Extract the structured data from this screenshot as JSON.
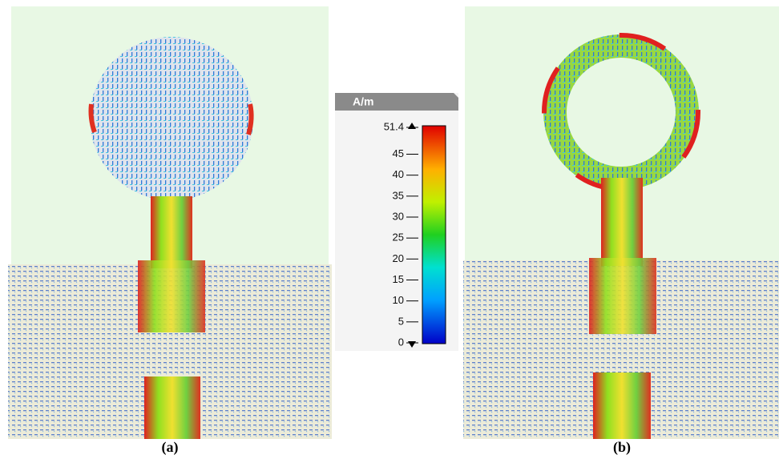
{
  "colorbar": {
    "unit": "A/m",
    "range": [
      0,
      51.4
    ],
    "ticks": [
      51.4,
      45,
      40,
      35,
      30,
      25,
      20,
      15,
      10,
      5,
      0
    ]
  },
  "panels": [
    {
      "label": "(a)"
    },
    {
      "label": "(b)"
    }
  ]
}
